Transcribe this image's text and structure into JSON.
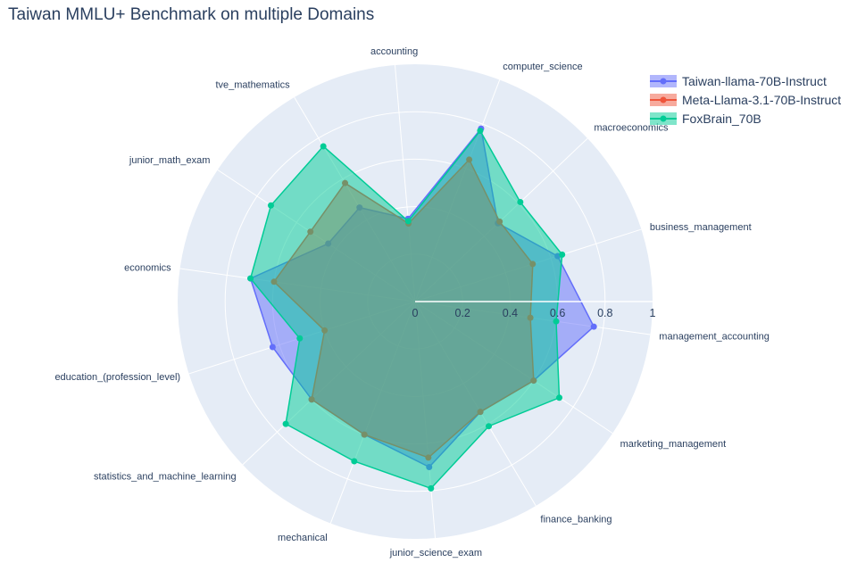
{
  "chart_data": {
    "type": "radar",
    "title": "Taiwan MMLU+ Benchmark on multiple Domains",
    "categories": [
      "management_accounting",
      "business_management",
      "macroeconomics",
      "computer_science",
      "accounting",
      "tve_mathematics",
      "junior_math_exam",
      "economics",
      "education_(profession_level)",
      "statistics_and_machine_learning",
      "mechanical",
      "junior_science_exam",
      "finance_banking",
      "marketing_management"
    ],
    "radial_ticks": [
      "0",
      "0.2",
      "0.4",
      "0.6",
      "0.8",
      "1"
    ],
    "rlim": [
      0,
      1
    ],
    "series": [
      {
        "name": "Taiwan-llama-70B-Instruct",
        "color": "#636efa",
        "values": [
          0.76,
          0.63,
          0.48,
          0.78,
          0.35,
          0.46,
          0.44,
          0.7,
          0.63,
          0.6,
          0.6,
          0.7,
          0.54,
          0.6
        ]
      },
      {
        "name": "Meta-Llama-3.1-70B-Instruct",
        "color": "#ef553b",
        "values": [
          0.49,
          0.52,
          0.49,
          0.64,
          0.33,
          0.58,
          0.53,
          0.6,
          0.4,
          0.6,
          0.6,
          0.66,
          0.54,
          0.6
        ]
      },
      {
        "name": "FoxBrain_70B",
        "color": "#00cc96",
        "values": [
          0.6,
          0.65,
          0.61,
          0.77,
          0.34,
          0.76,
          0.73,
          0.7,
          0.51,
          0.75,
          0.72,
          0.79,
          0.61,
          0.73
        ]
      }
    ],
    "legend_position": "top-right"
  }
}
